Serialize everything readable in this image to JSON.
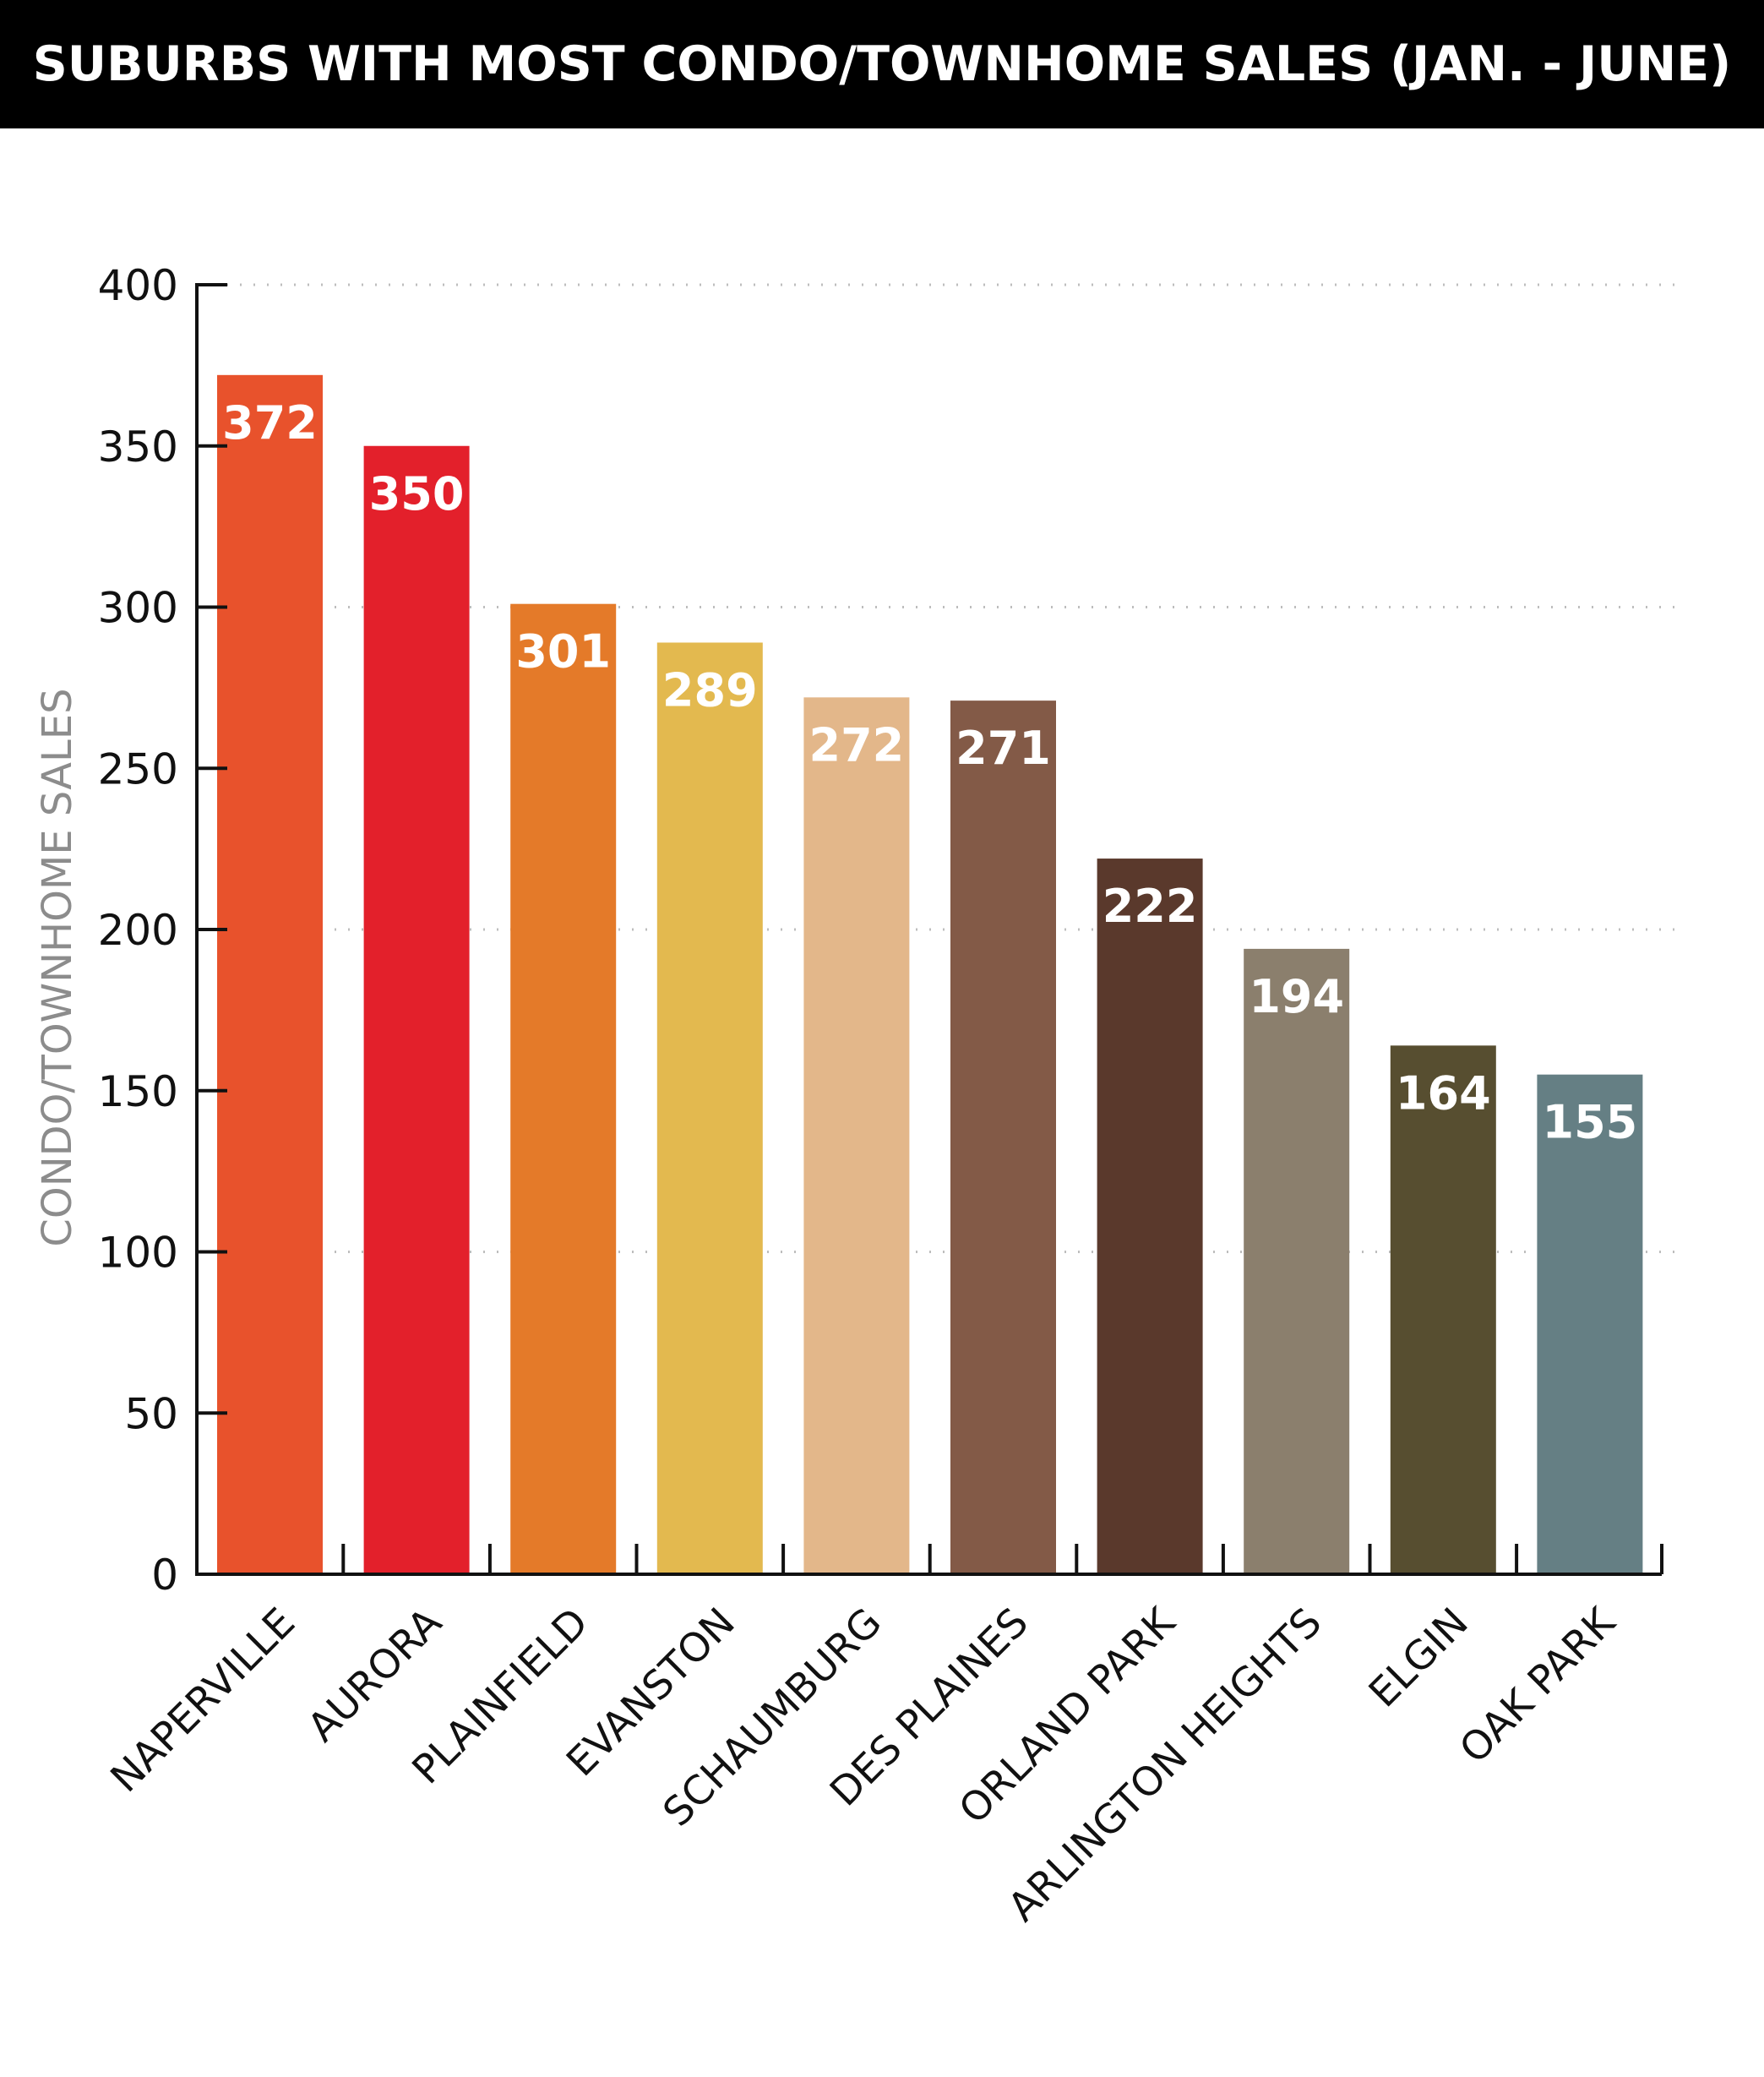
{
  "title": "SUBURBS WITH MOST CONDO/TOWNHOME SALES (JAN. - JUNE)",
  "chart_data": {
    "type": "bar",
    "title": "SUBURBS WITH MOST CONDO/TOWNHOME SALES (JAN. - JUNE)",
    "xlabel": "",
    "ylabel": "CONDO/TOWNHOME SALES",
    "ylim": [
      0,
      400
    ],
    "yticks": [
      0,
      50,
      100,
      150,
      200,
      250,
      300,
      350,
      400
    ],
    "grid": true,
    "legend": "none",
    "categories": [
      "NAPERVILLE",
      "AURORA",
      "PLAINFIELD",
      "EVANSTON",
      "SCHAUMBURG",
      "DES PLAINES",
      "ORLAND PARK",
      "ARLINGTON HEIGHTS",
      "ELGIN",
      "OAK PARK"
    ],
    "values": [
      372,
      350,
      301,
      289,
      272,
      271,
      222,
      194,
      164,
      155
    ],
    "data_labels": [
      "372",
      "350",
      "301",
      "289",
      "272",
      "271",
      "222",
      "194",
      "164",
      "155"
    ],
    "colors": [
      "#e8522c",
      "#e3202b",
      "#e47a29",
      "#e3b94f",
      "#e3b78a",
      "#835a47",
      "#5a392c",
      "#8b7f6d",
      "#574e30",
      "#657f84"
    ]
  },
  "colors": {
    "title_bar": "#000000",
    "title_text": "#ffffff",
    "axis": "#111111",
    "ylabel": "#8c8c8c",
    "grid": "#bdbdbd",
    "value_label": "#ffffff"
  }
}
